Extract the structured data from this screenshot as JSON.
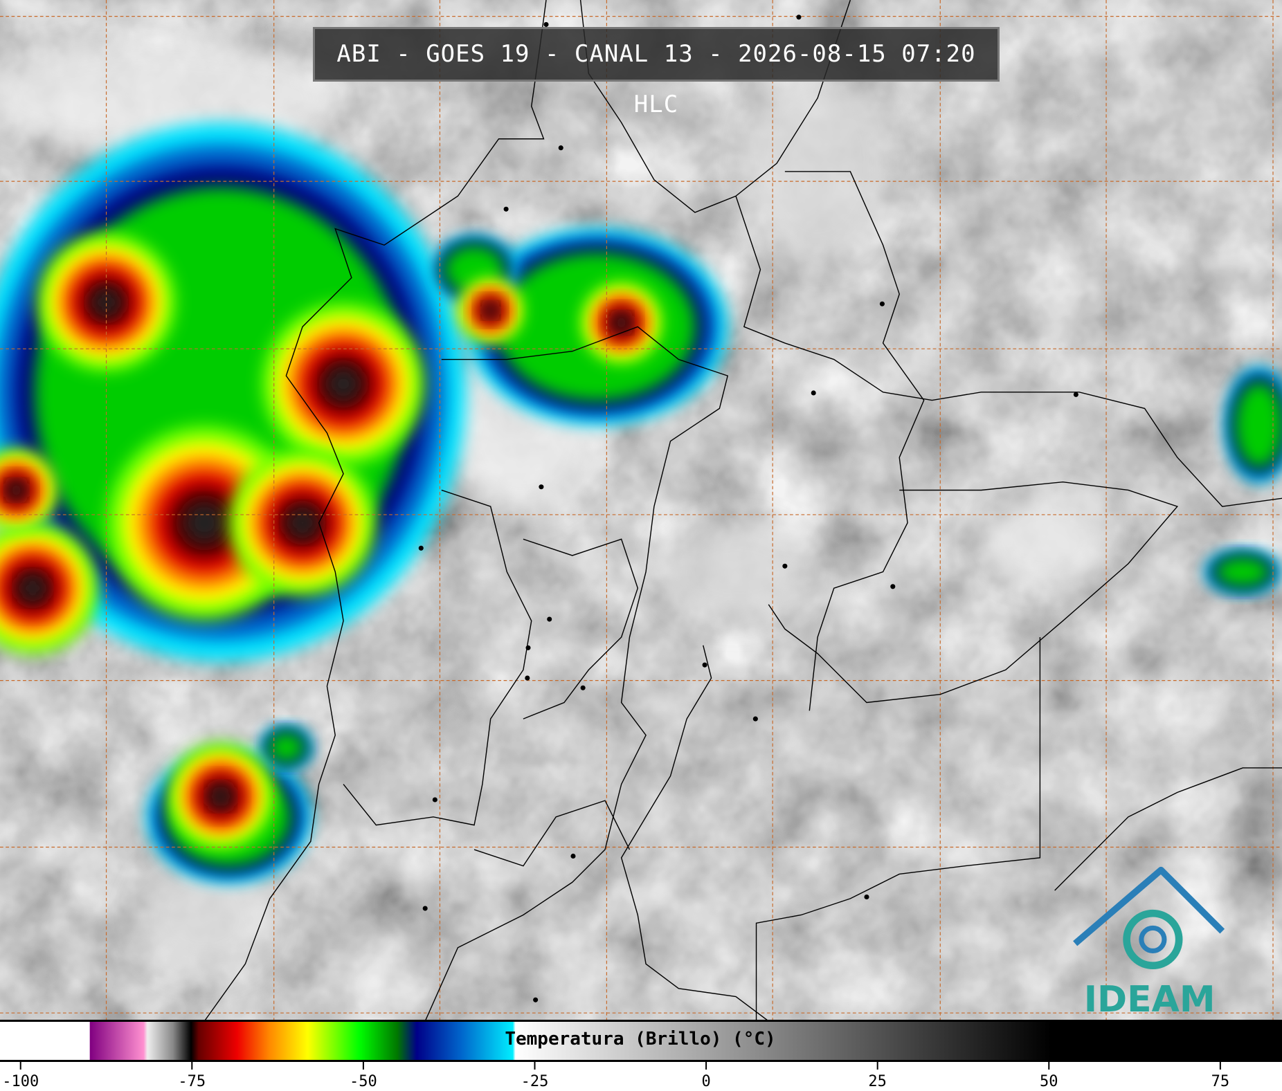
{
  "header": {
    "title": "ABI - GOES 19 - CANAL 13 - 2026-08-15 07:20 HLC"
  },
  "colorbar": {
    "label": "Temperatura (Brillo) (°C)",
    "lim": [
      -103,
      84
    ],
    "ticks": [
      -100,
      -75,
      -50,
      -25,
      0,
      25,
      50,
      75
    ]
  },
  "logo": {
    "text": "IDEAM"
  }
}
